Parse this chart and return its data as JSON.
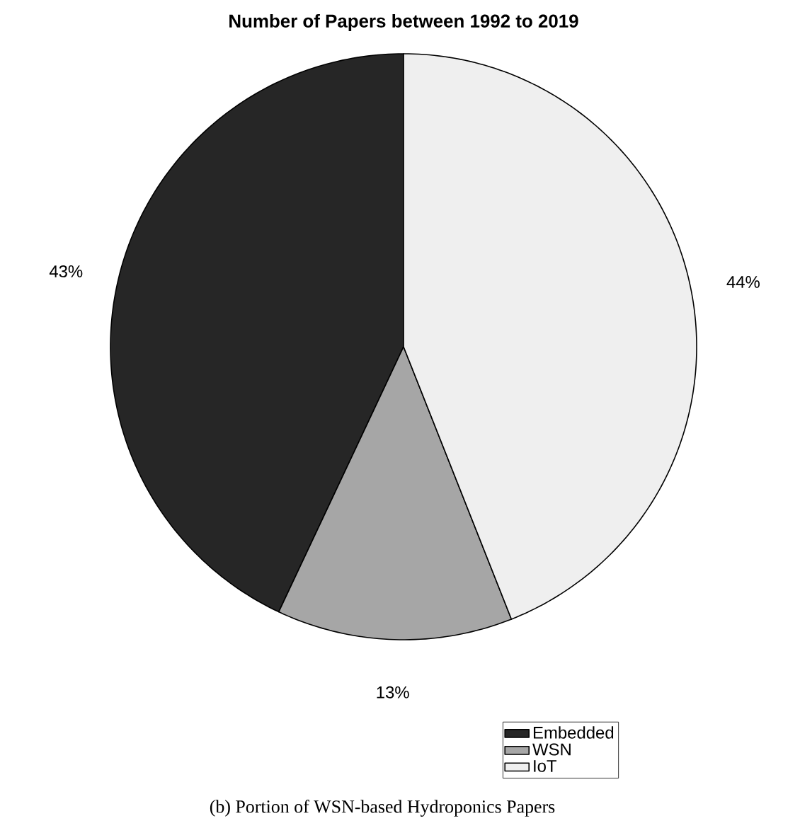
{
  "chart_data": {
    "type": "pie",
    "title": "Number of Papers between 1992 to 2019",
    "categories": [
      "Embedded",
      "WSN",
      "IoT"
    ],
    "values": [
      43,
      13,
      44
    ],
    "colors": [
      "#262626",
      "#a6a6a6",
      "#efefef"
    ],
    "value_labels": [
      "43%",
      "13%",
      "44%"
    ],
    "legend": "bottom right",
    "annotations": [
      "(b) Portion of WSN-based Hydroponics Papers"
    ]
  }
}
